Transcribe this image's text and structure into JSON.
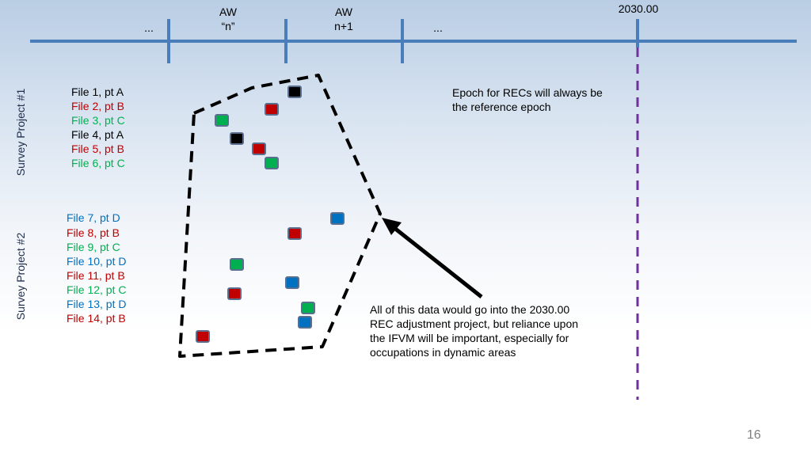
{
  "timeline": {
    "ellipsis_left": "...",
    "aw_n_line1": "AW",
    "aw_n_line2": "“n”",
    "aw_n1_line1": "AW",
    "aw_n1_line2": "n+1",
    "ellipsis_right": "...",
    "epoch_label": "2030.00"
  },
  "survey1": {
    "label": "Survey Project #1",
    "files": [
      {
        "text": "File 1, pt A",
        "pt": "A"
      },
      {
        "text": "File 2, pt B",
        "pt": "B"
      },
      {
        "text": "File 3, pt C",
        "pt": "C"
      },
      {
        "text": "File 4, pt A",
        "pt": "A"
      },
      {
        "text": "File 5, pt B",
        "pt": "B"
      },
      {
        "text": "File 6, pt C",
        "pt": "C"
      }
    ]
  },
  "survey2": {
    "label": "Survey Project #2",
    "files": [
      {
        "text": "File 7, pt D",
        "pt": "D"
      },
      {
        "text": "File 8, pt B",
        "pt": "B"
      },
      {
        "text": "File 9, pt C",
        "pt": "C"
      },
      {
        "text": "File 10, pt D",
        "pt": "D"
      },
      {
        "text": "File 11, pt B",
        "pt": "B"
      },
      {
        "text": "File 12, pt C",
        "pt": "C"
      },
      {
        "text": "File 13, pt D",
        "pt": "D"
      },
      {
        "text": "File 14, pt B",
        "pt": "B"
      }
    ]
  },
  "point_colors": {
    "A": "#000000",
    "B": "#c00000",
    "C": "#00b050",
    "D": "#0070c0"
  },
  "notes": {
    "epoch_line1": "Epoch for RECs will always be",
    "epoch_line2": "the reference epoch",
    "adj_line1": "All of this data would go into the 2030.00",
    "adj_line2": "REC adjustment project, but reliance upon",
    "adj_line3": "the IFVM will be important, especially for",
    "adj_line4": "occupations in dynamic areas"
  },
  "page_number": "16"
}
